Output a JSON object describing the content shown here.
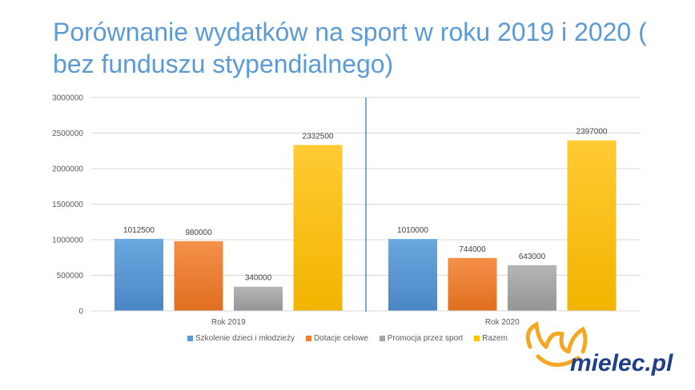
{
  "title": "Porównanie wydatków na sport w roku 2019 i 2020 ( bez funduszu stypendialnego)",
  "chart_data": {
    "type": "bar",
    "categories": [
      "Rok 2019",
      "Rok 2020"
    ],
    "series": [
      {
        "name": "Szkolenie dzieci i młodzieży",
        "values": [
          1012500,
          1010000
        ],
        "color": "#5b9bd5"
      },
      {
        "name": "Dotacje celowe",
        "values": [
          980000,
          744000
        ],
        "color": "#ed7d31"
      },
      {
        "name": "Promocja przez sport",
        "values": [
          340000,
          643000
        ],
        "color": "#a5a5a5"
      },
      {
        "name": "Razem",
        "values": [
          2332500,
          2397000
        ],
        "color": "#ffc000"
      }
    ],
    "ylim": [
      0,
      3000000
    ],
    "yticks": [
      "0",
      "500000",
      "1000000",
      "1500000",
      "2000000",
      "2500000",
      "3000000"
    ],
    "grid": true,
    "legend_position": "bottom",
    "xlabel": "",
    "ylabel": ""
  },
  "logo": {
    "text": "mielec.pl",
    "colors": {
      "orange": "#f5a623",
      "blue": "#1f3f8a"
    }
  }
}
